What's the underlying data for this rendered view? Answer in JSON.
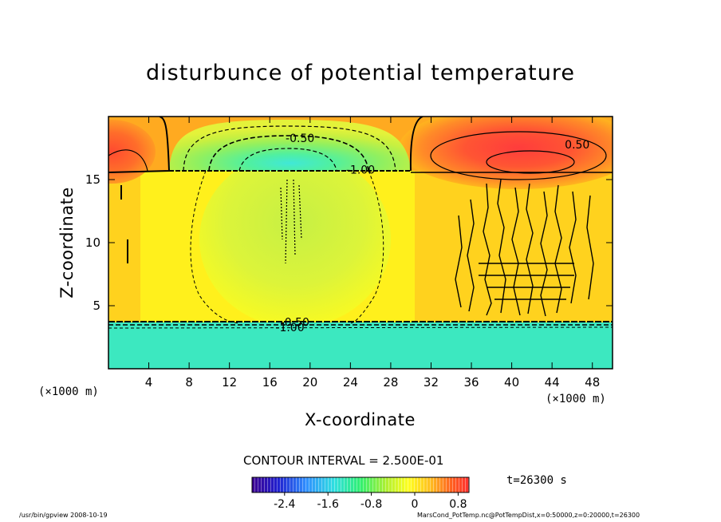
{
  "chart_data": {
    "type": "heatmap",
    "title": "disturbunce of potential temperature",
    "xlabel": "X-coordinate",
    "ylabel": "Z-coordinate",
    "x_unit_label": "(×1000 m)",
    "xlim": [
      0,
      50
    ],
    "ylim": [
      0,
      20
    ],
    "x_ticks": [
      4,
      8,
      12,
      16,
      20,
      24,
      28,
      32,
      36,
      40,
      44,
      48
    ],
    "y_ticks": [
      5,
      10,
      15
    ],
    "contour_labels": [
      "-0.50",
      "-1.00",
      "0.50",
      "-0.50",
      "-1.00"
    ],
    "contour_interval_text": "CONTOUR INTERVAL = 2.500E-01",
    "colorbar": {
      "range": [
        -3.0,
        1.0
      ],
      "ticks": [
        "-2.4",
        "-1.6",
        "-0.8",
        "0",
        "0.8"
      ],
      "tick_values": [
        -2.4,
        -1.6,
        -0.8,
        0,
        0.8
      ]
    },
    "regions": [
      {
        "name": "lower layer",
        "x": [
          0,
          50
        ],
        "z": [
          0,
          3.5
        ],
        "value": -1.5
      },
      {
        "name": "middle layer",
        "x": [
          0,
          50
        ],
        "z": [
          3.5,
          15.5
        ],
        "value": 0.0
      },
      {
        "name": "central cool dome",
        "x_center": 18.5,
        "z_center": 16.0,
        "value": -1.6
      },
      {
        "name": "right warm cell",
        "x_center": 44,
        "z_center": 16.5,
        "value": 0.9
      },
      {
        "name": "left warm cell",
        "x_center": 1,
        "z_center": 17.0,
        "value": 0.7
      }
    ],
    "grid": false
  },
  "time_label": "t=26300 s",
  "footer": {
    "left": "/usr/bin/gpview   2008-10-19",
    "right": "MarsCond_PotTemp.nc@PotTempDist,x=0:50000,z=0:20000,t=26300"
  }
}
